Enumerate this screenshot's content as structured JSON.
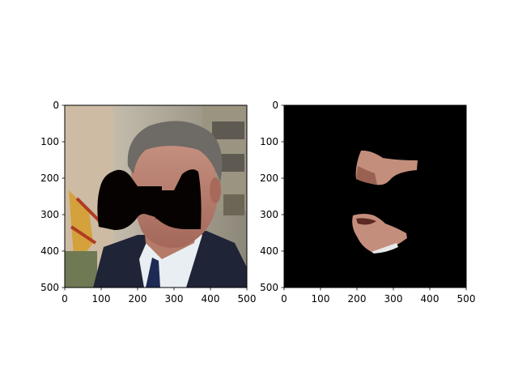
{
  "chart_data": [
    {
      "type": "image",
      "panel": "left",
      "content": "photo of a man in a suit with a black bow-tie-shaped mask covering the eyes and nose region",
      "xlim": [
        0,
        500
      ],
      "ylim": [
        500,
        0
      ],
      "xticks": [
        0,
        100,
        200,
        300,
        400,
        500
      ],
      "yticks": [
        0,
        100,
        200,
        300,
        400,
        500
      ],
      "mask_color": "#060201"
    },
    {
      "type": "image",
      "panel": "right",
      "content": "black background showing only the unmasked skin fragments of the face (cheek/nose region and mouth/chin region)",
      "xlim": [
        0,
        500
      ],
      "ylim": [
        500,
        0
      ],
      "xticks": [
        0,
        100,
        200,
        300,
        400,
        500
      ],
      "yticks": [
        0,
        100,
        200,
        300,
        400,
        500
      ],
      "background_color": "#000000"
    }
  ],
  "colors": {
    "axes_frame": "#000000",
    "skin": "#c48e7c",
    "skin_shadow": "#8f5a4c",
    "suit": "#1f2437",
    "shirt": "#e9eef3",
    "hair": "#6e6a66",
    "building": "#a8a290"
  }
}
